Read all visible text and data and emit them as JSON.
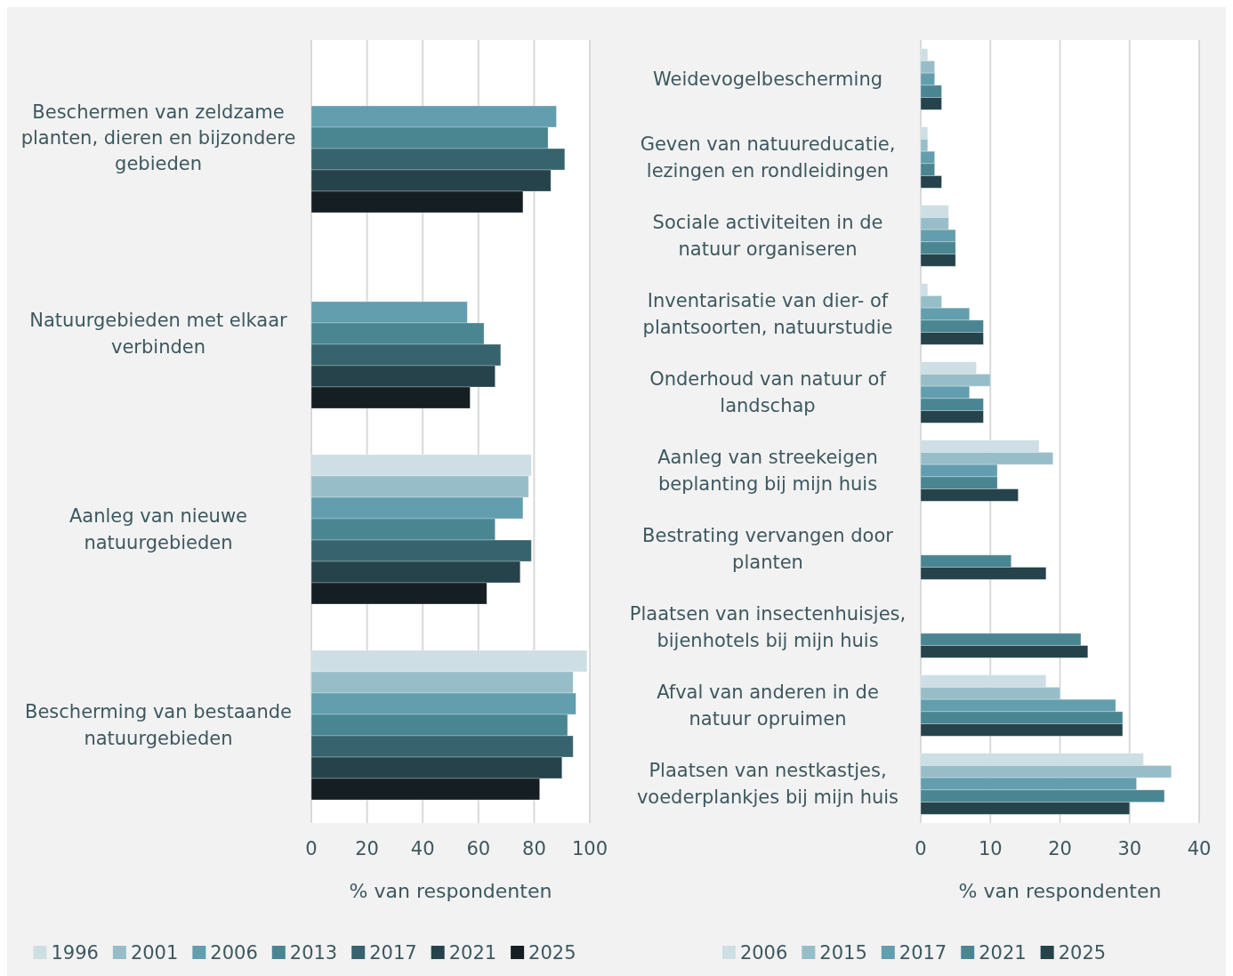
{
  "chart_data": [
    {
      "type": "bar",
      "orientation": "horizontal",
      "categories": [
        "Beschermen van zeldzame planten, dieren en bijzondere gebieden",
        "Natuurgebieden met elkaar verbinden",
        "Aanleg van nieuwe natuurgebieden",
        "Bescherming van bestaande natuurgebieden"
      ],
      "xlabel": "% van respondenten",
      "xlim": [
        0,
        100
      ],
      "xticks": [
        0,
        20,
        40,
        60,
        80,
        100
      ],
      "grid": "x",
      "legend": "bottom",
      "series": [
        {
          "name": "1996",
          "color": "#cddfe4",
          "values": [
            null,
            null,
            79,
            99
          ]
        },
        {
          "name": "2001",
          "color": "#97bec8",
          "values": [
            null,
            null,
            78,
            94
          ]
        },
        {
          "name": "2006",
          "color": "#639eae",
          "values": [
            88,
            56,
            76,
            95
          ]
        },
        {
          "name": "2013",
          "color": "#4a8592",
          "values": [
            85,
            62,
            66,
            92
          ]
        },
        {
          "name": "2017",
          "color": "#36636e",
          "values": [
            91,
            68,
            79,
            94
          ]
        },
        {
          "name": "2021",
          "color": "#26434b",
          "values": [
            86,
            66,
            75,
            90
          ]
        },
        {
          "name": "2025",
          "color": "#151f23",
          "values": [
            76,
            57,
            63,
            82
          ]
        }
      ]
    },
    {
      "type": "bar",
      "orientation": "horizontal",
      "categories": [
        "Weidevogelbescherming",
        "Geven van natuureducatie, lezingen en rondleidingen",
        "Sociale activiteiten in de natuur organiseren",
        "Inventarisatie van dier- of plantsoorten, natuurstudie",
        "Onderhoud van natuur of landschap",
        "Aanleg van streekeigen beplanting bij mijn huis",
        "Bestrating vervangen door planten",
        "Plaatsen van insectenhuisjes, bijenhotels bij mijn huis",
        "Afval van anderen in de natuur opruimen",
        "Plaatsen van nestkastjes, voederplankjes bij mijn huis"
      ],
      "xlabel": "% van respondenten",
      "xlim": [
        0,
        40
      ],
      "xticks": [
        0,
        10,
        20,
        30,
        40
      ],
      "grid": "x",
      "legend": "bottom",
      "series": [
        {
          "name": "2006",
          "color": "#cddfe4",
          "values": [
            1,
            1,
            4,
            1,
            8,
            17,
            null,
            null,
            18,
            32
          ]
        },
        {
          "name": "2015",
          "color": "#97bec8",
          "values": [
            2,
            1,
            4,
            3,
            10,
            19,
            null,
            null,
            20,
            36
          ]
        },
        {
          "name": "2017",
          "color": "#639eae",
          "values": [
            2,
            2,
            5,
            7,
            7,
            11,
            null,
            null,
            28,
            31
          ]
        },
        {
          "name": "2021",
          "color": "#4a8592",
          "values": [
            3,
            2,
            5,
            9,
            9,
            11,
            13,
            23,
            29,
            35
          ]
        },
        {
          "name": "2025",
          "color": "#26434b",
          "values": [
            3,
            3,
            5,
            9,
            9,
            14,
            18,
            24,
            29,
            30
          ]
        }
      ]
    }
  ]
}
